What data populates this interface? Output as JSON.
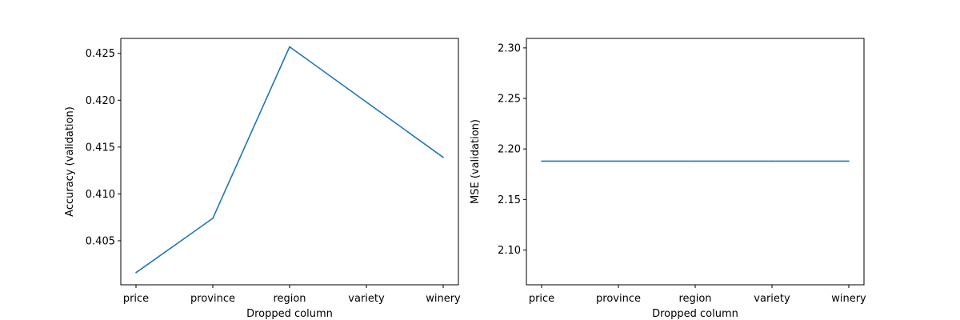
{
  "chart_data": [
    {
      "type": "line",
      "categories": [
        "price",
        "province",
        "region",
        "variety",
        "winery"
      ],
      "series": [
        {
          "values": [
            0.4016,
            0.4074,
            0.4257,
            0.4198,
            0.4139
          ]
        }
      ],
      "xlabel": "Dropped column",
      "ylabel": "Accuracy (validation)",
      "ylim": [
        0.4003,
        0.4266
      ],
      "yticks": [
        "0.405",
        "0.410",
        "0.415",
        "0.420",
        "0.425"
      ],
      "ytick_values": [
        0.405,
        0.41,
        0.415,
        0.42,
        0.425
      ],
      "grid": false,
      "line_color": "#1f77b4"
    },
    {
      "type": "line",
      "categories": [
        "price",
        "province",
        "region",
        "variety",
        "winery"
      ],
      "series": [
        {
          "values": [
            2.188,
            2.188,
            2.188,
            2.188,
            2.188
          ]
        }
      ],
      "xlabel": "Dropped column",
      "ylabel": "MSE (validation)",
      "ylim": [
        2.0656,
        2.3094
      ],
      "yticks": [
        "2.10",
        "2.15",
        "2.20",
        "2.25",
        "2.30"
      ],
      "ytick_values": [
        2.1,
        2.15,
        2.2,
        2.25,
        2.3
      ],
      "grid": false,
      "line_color": "#1f77b4"
    }
  ]
}
